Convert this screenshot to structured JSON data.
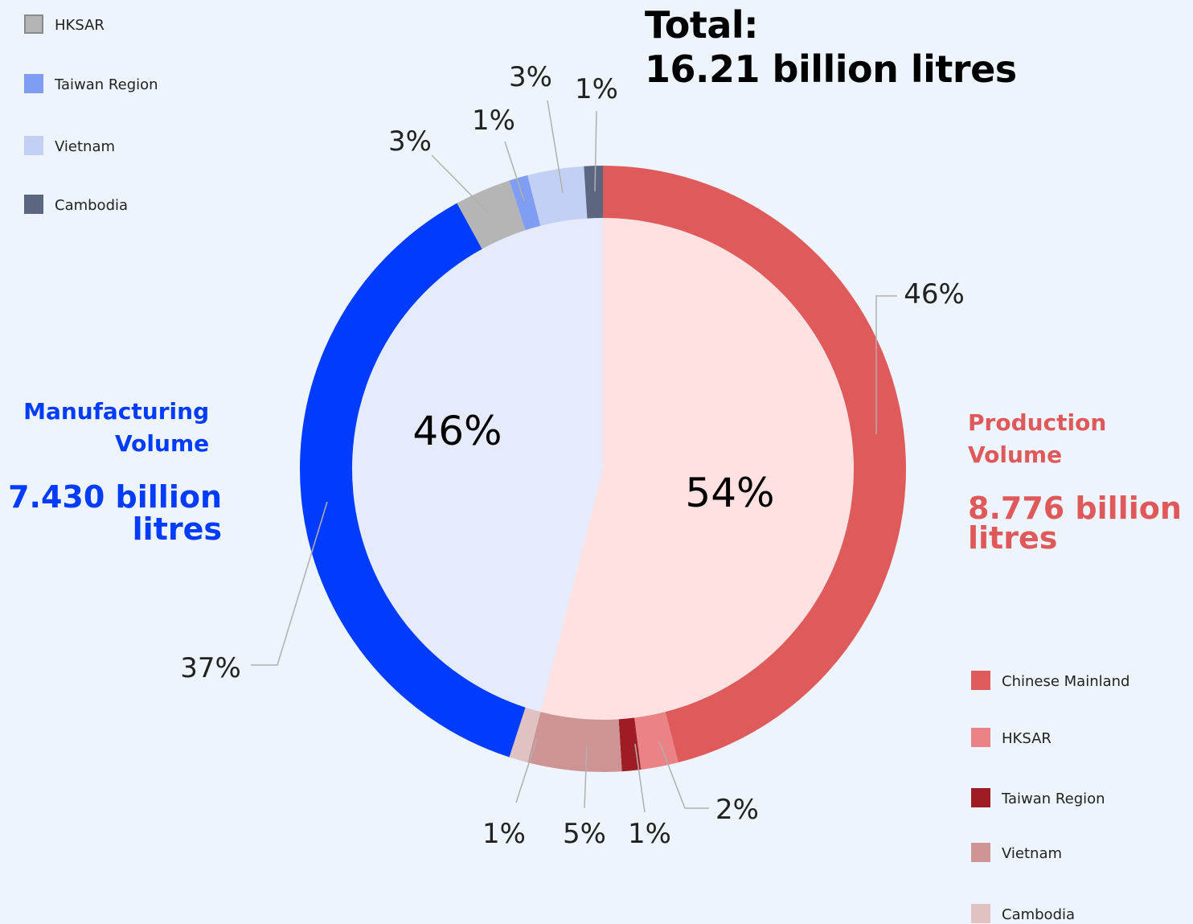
{
  "title": {
    "line1": "Total:",
    "line2": "16.21 billion litres"
  },
  "manufacturing": {
    "label": "Manufacturing Volume",
    "value_line1": "7.430 billion",
    "value_line2": "litres"
  },
  "production": {
    "label_line1": "Production",
    "label_line2": "Volume",
    "value_line1": "8.776 billion",
    "value_line2": "litres"
  },
  "legend_manufacturing": [
    {
      "label": "HKSAR",
      "color": "#b5b5b5"
    },
    {
      "label": "Taiwan Region",
      "color": "#7f9ef3"
    },
    {
      "label": "Vietnam",
      "color": "#c3d0f3"
    },
    {
      "label": "Cambodia",
      "color": "#5d6680"
    }
  ],
  "legend_production": [
    {
      "label": "Chinese Mainland",
      "color": "#df5a5a"
    },
    {
      "label": "HKSAR",
      "color": "#eb8286"
    },
    {
      "label": "Taiwan Region",
      "color": "#a01c24"
    },
    {
      "label": "Vietnam",
      "color": "#cd9395"
    },
    {
      "label": "Cambodia",
      "color": "#e0c2c2"
    }
  ],
  "chart_data": {
    "type": "pie",
    "inner": [
      {
        "name": "Production Volume",
        "value": 54,
        "label": "54%",
        "color": "#ffe1e1"
      },
      {
        "name": "Manufacturing Volume",
        "value": 46,
        "label": "46%",
        "color": "#e5ebfb"
      }
    ],
    "outer": [
      {
        "group": "Production Volume",
        "region": "Chinese Mainland",
        "value": 46,
        "label": "46%",
        "color": "#df5a5a"
      },
      {
        "group": "Production Volume",
        "region": "HKSAR",
        "value": 2,
        "label": "2%",
        "color": "#eb8286"
      },
      {
        "group": "Production Volume",
        "region": "Taiwan Region",
        "value": 1,
        "label": "1%",
        "color": "#a01c24"
      },
      {
        "group": "Production Volume",
        "region": "Vietnam",
        "value": 5,
        "label": "5%",
        "color": "#cd9395"
      },
      {
        "group": "Production Volume",
        "region": "Cambodia",
        "value": 1,
        "label": "1%",
        "color": "#e0c2c2"
      },
      {
        "group": "Manufacturing Volume",
        "region": "Chinese Mainland",
        "value": 37,
        "label": "37%",
        "color": "#003cff"
      },
      {
        "group": "Manufacturing Volume",
        "region": "HKSAR",
        "value": 3,
        "label": "3%",
        "color": "#b5b5b5"
      },
      {
        "group": "Manufacturing Volume",
        "region": "Taiwan Region",
        "value": 1,
        "label": "1%",
        "color": "#7f9ef3"
      },
      {
        "group": "Manufacturing Volume",
        "region": "Vietnam",
        "value": 3,
        "label": "3%",
        "color": "#c3d0f3"
      },
      {
        "group": "Manufacturing Volume",
        "region": "Cambodia",
        "value": 1,
        "label": "1%",
        "color": "#5d6680"
      }
    ]
  }
}
